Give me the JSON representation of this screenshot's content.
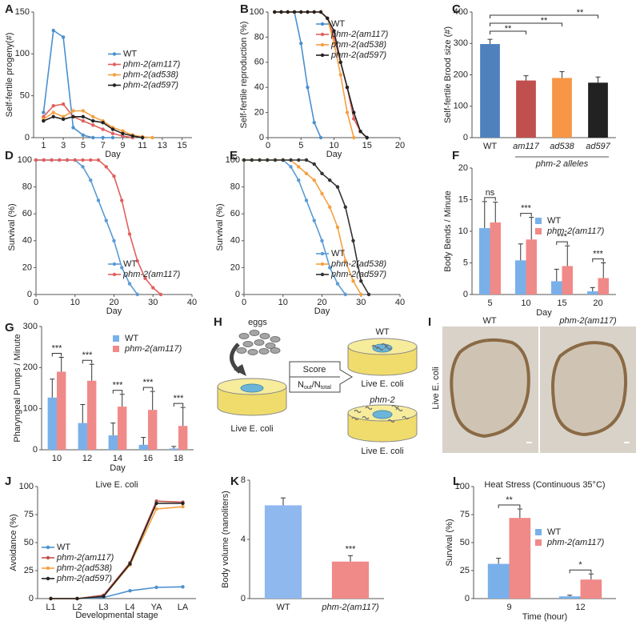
{
  "chart_data": [
    {
      "type": "line",
      "panel": "A",
      "xlabel": "Day",
      "ylabel": "Self-fertile progeny(#)",
      "x": [
        1,
        2,
        3,
        4,
        5,
        6,
        7,
        8,
        9,
        10,
        11,
        12,
        13,
        14,
        15
      ],
      "xlim": [
        0,
        16
      ],
      "xticks": [
        1,
        3,
        5,
        7,
        9,
        11,
        13,
        15
      ],
      "ylim": [
        0,
        150
      ],
      "yticks": [
        0,
        50,
        100,
        150
      ],
      "legend": "center right",
      "series": [
        {
          "name": "WT",
          "color": "#4a90d0",
          "values": [
            30,
            128,
            120,
            12,
            3,
            0,
            0,
            0,
            null,
            null,
            null,
            null,
            null,
            null,
            null
          ]
        },
        {
          "name": "phm-2(am117)",
          "color": "#e0605e",
          "values": [
            25,
            38,
            40,
            25,
            20,
            15,
            10,
            5,
            2,
            0,
            null,
            null,
            null,
            null,
            null
          ]
        },
        {
          "name": "phm-2(ad538)",
          "color": "#f5a040",
          "values": [
            22,
            30,
            25,
            32,
            32,
            25,
            20,
            12,
            8,
            3,
            1,
            0,
            null,
            null,
            null
          ]
        },
        {
          "name": "phm-2(ad597)",
          "color": "#222222",
          "values": [
            20,
            25,
            22,
            25,
            25,
            20,
            18,
            10,
            5,
            2,
            0,
            null,
            null,
            null,
            null
          ]
        }
      ]
    },
    {
      "type": "line",
      "panel": "B",
      "xlabel": "Day",
      "ylabel": "Self-fertile reproduction (%)",
      "x": [
        1,
        2,
        3,
        4,
        5,
        6,
        7,
        8,
        9,
        10,
        11,
        12,
        13,
        14,
        15
      ],
      "xlim": [
        0,
        20
      ],
      "xticks": [
        0,
        5,
        10,
        15,
        20
      ],
      "ylim": [
        0,
        100
      ],
      "yticks": [
        0,
        20,
        40,
        60,
        80,
        100
      ],
      "legend": "upper right",
      "series": [
        {
          "name": "WT",
          "color": "#4a90d0",
          "values": [
            100,
            100,
            100,
            100,
            75,
            40,
            12,
            0,
            null,
            null,
            null,
            null,
            null,
            null,
            null
          ]
        },
        {
          "name": "phm-2(am117)",
          "color": "#e0605e",
          "values": [
            100,
            100,
            100,
            100,
            100,
            100,
            100,
            100,
            95,
            80,
            60,
            40,
            15,
            5,
            0
          ]
        },
        {
          "name": "phm-2(ad538)",
          "color": "#f5a040",
          "values": [
            100,
            100,
            100,
            100,
            100,
            100,
            100,
            100,
            95,
            75,
            50,
            20,
            0,
            null,
            null
          ]
        },
        {
          "name": "phm-2(ad597)",
          "color": "#222222",
          "values": [
            100,
            100,
            100,
            100,
            100,
            100,
            100,
            100,
            95,
            85,
            60,
            40,
            20,
            5,
            0
          ]
        }
      ]
    },
    {
      "type": "bar",
      "panel": "C",
      "ylabel": "Self-fertile Brood size (#)",
      "categories": [
        "WT",
        "am117",
        "ad538",
        "ad597"
      ],
      "values": [
        298,
        182,
        190,
        175
      ],
      "errors": [
        15,
        15,
        20,
        18
      ],
      "colors": [
        "#4f81bd",
        "#c0504d",
        "#f79646",
        "#222222"
      ],
      "ylim": [
        0,
        400
      ],
      "yticks": [
        0,
        100,
        200,
        300,
        400
      ],
      "annotations": [
        "**",
        "**",
        "**"
      ],
      "group_label": "phm-2 alleles"
    },
    {
      "type": "line",
      "panel": "D",
      "xlabel": "Day",
      "ylabel": "Survival (%)",
      "x": [
        0,
        2,
        4,
        6,
        8,
        10,
        12,
        14,
        16,
        18,
        20,
        22,
        24,
        26,
        28,
        30,
        32
      ],
      "xlim": [
        0,
        40
      ],
      "xticks": [
        0,
        10,
        20,
        30,
        40
      ],
      "ylim": [
        0,
        100
      ],
      "yticks": [
        0,
        20,
        40,
        60,
        80,
        100
      ],
      "legend": "lower right",
      "series": [
        {
          "name": "WT",
          "color": "#5b9bd5",
          "values": [
            100,
            100,
            100,
            100,
            100,
            100,
            95,
            85,
            70,
            55,
            40,
            20,
            8,
            0,
            null,
            null,
            null
          ]
        },
        {
          "name": "phm-2(am117)",
          "color": "#e0605e",
          "values": [
            100,
            100,
            100,
            100,
            100,
            100,
            100,
            100,
            100,
            95,
            88,
            70,
            45,
            25,
            12,
            5,
            0
          ]
        }
      ]
    },
    {
      "type": "line",
      "panel": "E",
      "xlabel": "Day",
      "ylabel": "Survival (%)",
      "x": [
        0,
        2,
        4,
        6,
        8,
        10,
        12,
        14,
        16,
        18,
        20,
        22,
        24,
        26,
        28,
        30,
        32
      ],
      "xlim": [
        0,
        40
      ],
      "xticks": [
        0,
        10,
        20,
        30,
        40
      ],
      "ylim": [
        0,
        100
      ],
      "yticks": [
        0,
        20,
        40,
        60,
        80,
        100
      ],
      "legend": "lower right",
      "series": [
        {
          "name": "WT",
          "color": "#5b9bd5",
          "values": [
            100,
            100,
            100,
            100,
            100,
            100,
            95,
            85,
            70,
            55,
            40,
            20,
            8,
            0,
            null,
            null,
            null
          ]
        },
        {
          "name": "phm-2(ad538)",
          "color": "#f5a040",
          "values": [
            100,
            100,
            100,
            100,
            100,
            100,
            100,
            95,
            90,
            85,
            75,
            65,
            50,
            25,
            10,
            0,
            null
          ]
        },
        {
          "name": "phm-2(ad597)",
          "color": "#333333",
          "values": [
            100,
            100,
            100,
            100,
            100,
            100,
            100,
            100,
            100,
            97,
            90,
            85,
            80,
            65,
            40,
            10,
            0
          ]
        }
      ]
    },
    {
      "type": "grouped-bar",
      "panel": "F",
      "xlabel": "Day",
      "ylabel": "Body Bends / Minute",
      "categories": [
        "5",
        "10",
        "15",
        "20"
      ],
      "ylim": [
        0,
        20
      ],
      "yticks": [
        0,
        5,
        10,
        15,
        20
      ],
      "legend": "center right",
      "annotations": [
        "ns",
        "***",
        "***",
        "***"
      ],
      "series": [
        {
          "name": "WT",
          "color": "#7ab0ea",
          "values": [
            10.5,
            5.4,
            2.1,
            0.5
          ],
          "errors": [
            4.2,
            2.6,
            1.9,
            0.6
          ]
        },
        {
          "name": "phm-2(am117)",
          "color": "#f08a88",
          "values": [
            11.4,
            8.7,
            4.5,
            2.6
          ],
          "errors": [
            3.2,
            3.5,
            3.2,
            2.4
          ]
        }
      ]
    },
    {
      "type": "grouped-bar",
      "panel": "G",
      "xlabel": "Day",
      "ylabel": "Pharyngeal Pumps / Minute",
      "categories": [
        "10",
        "12",
        "14",
        "16",
        "18"
      ],
      "ylim": [
        0,
        300
      ],
      "yticks": [
        0,
        100,
        200,
        300
      ],
      "legend": "upper right",
      "annotations": [
        "***",
        "***",
        "***",
        "***",
        "***"
      ],
      "series": [
        {
          "name": "WT",
          "color": "#7ab0ea",
          "values": [
            127,
            65,
            35,
            12,
            3
          ],
          "errors": [
            45,
            45,
            30,
            18,
            5
          ]
        },
        {
          "name": "phm-2(am117)",
          "color": "#f08a88",
          "values": [
            190,
            168,
            105,
            97,
            58
          ],
          "errors": [
            35,
            40,
            30,
            45,
            45
          ]
        }
      ]
    },
    {
      "type": "line",
      "panel": "J",
      "title": "Live E. coli",
      "xlabel": "Developmental stage",
      "ylabel": "Avoidance (%)",
      "categories": [
        "L1",
        "L2",
        "L3",
        "L4",
        "YA",
        "LA"
      ],
      "ylim": [
        0,
        100
      ],
      "yticks": [
        0,
        25,
        50,
        75,
        100
      ],
      "legend": "lower left",
      "series": [
        {
          "name": "WT",
          "color": "#4a90d0",
          "values": [
            0,
            0,
            1,
            7,
            10,
            10.5
          ]
        },
        {
          "name": "phm-2(am117)",
          "color": "#c0504d",
          "values": [
            0,
            0,
            3,
            32,
            87,
            86
          ]
        },
        {
          "name": "phm-2(ad538)",
          "color": "#f5a040",
          "values": [
            0,
            0,
            2,
            30,
            80,
            82
          ]
        },
        {
          "name": "phm-2(ad597)",
          "color": "#222222",
          "values": [
            0,
            0,
            2,
            31,
            85,
            85
          ]
        }
      ]
    },
    {
      "type": "bar",
      "panel": "K",
      "ylabel": "Body volume (nanoliters)",
      "categories": [
        "WT",
        "phm-2(am117)"
      ],
      "values": [
        6.3,
        2.5
      ],
      "errors": [
        0.5,
        0.4
      ],
      "colors": [
        "#8fb8ee",
        "#f08a88"
      ],
      "ylim": [
        0,
        8
      ],
      "yticks": [
        0,
        4,
        8
      ],
      "annotations": [
        "***"
      ]
    },
    {
      "type": "grouped-bar",
      "panel": "L",
      "title": "Heat Stress (Continuous 35°C)",
      "xlabel": "Time (hour)",
      "ylabel": "Survival (%)",
      "categories": [
        "9",
        "12"
      ],
      "ylim": [
        0,
        100
      ],
      "yticks": [
        0,
        25,
        50,
        75,
        100
      ],
      "legend": "center right",
      "annotations": [
        "**",
        "*"
      ],
      "series": [
        {
          "name": "WT",
          "color": "#7ab0ea",
          "values": [
            31,
            2
          ],
          "errors": [
            5,
            1
          ]
        },
        {
          "name": "phm-2(am117)",
          "color": "#f08a88",
          "values": [
            72,
            17
          ],
          "errors": [
            8,
            5
          ]
        }
      ]
    }
  ],
  "diagram": {
    "panel": "H",
    "eggs": "eggs",
    "score": "Score",
    "ratio": [
      "N",
      "out",
      "/N",
      "total"
    ],
    "left_plate": "Live E. coli",
    "top_plate_title": "WT",
    "top_plate": "Live E. coli",
    "bottom_plate_title": "phm-2",
    "bottom_plate": "Live E. coli"
  },
  "images": {
    "panel": "I",
    "left_title": "WT",
    "right_title": "phm-2(am117)",
    "side_label": "Live E. coli"
  }
}
